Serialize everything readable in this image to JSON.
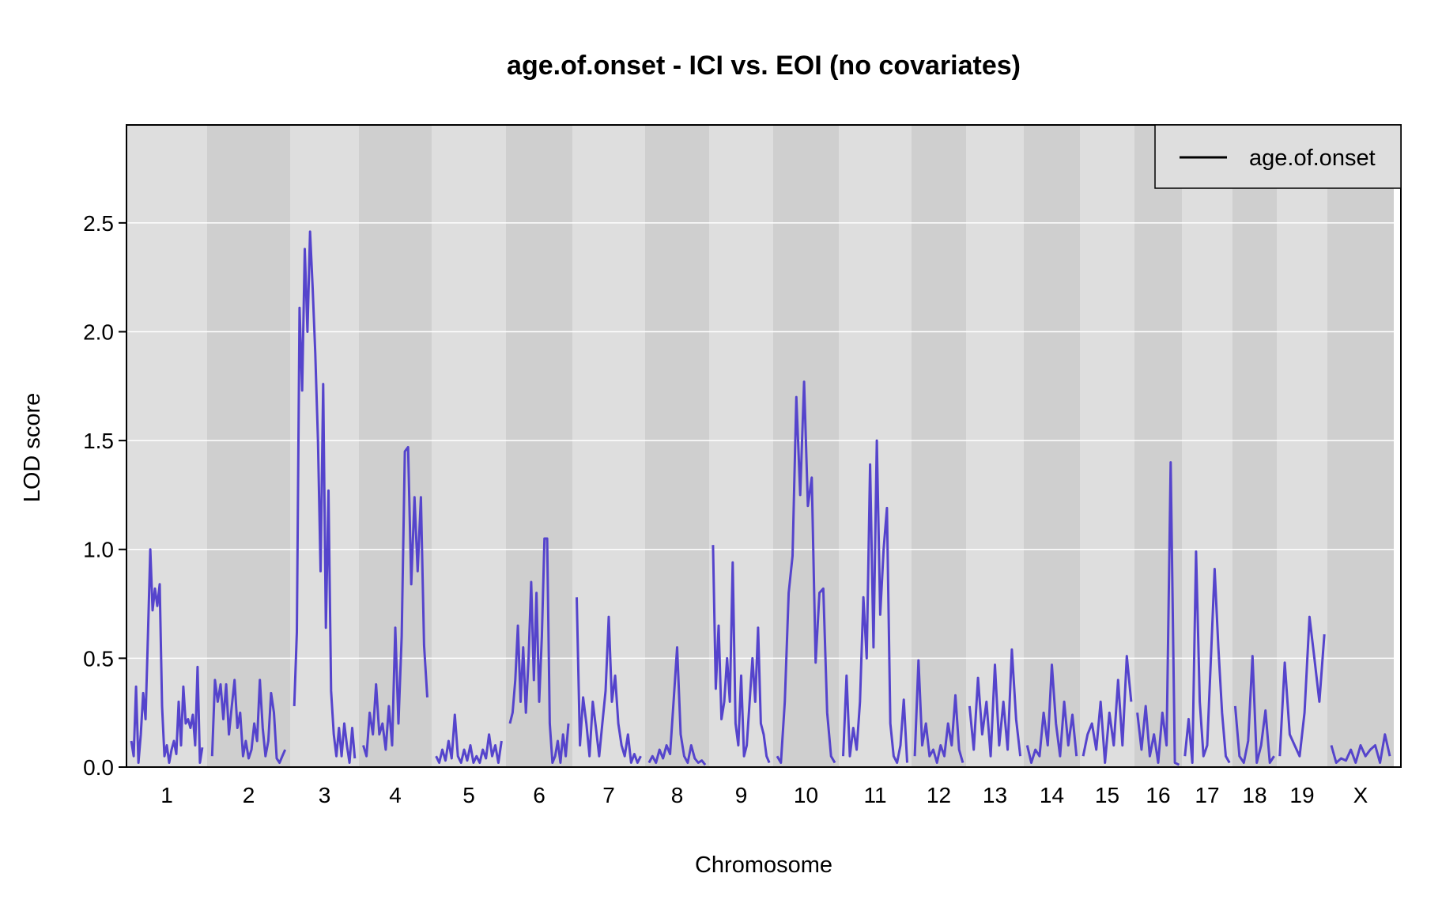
{
  "chart_data": {
    "type": "line",
    "title": "age.of.onset - ICI vs. EOI (no covariates)",
    "xlabel": "Chromosome",
    "ylabel": "LOD score",
    "ylim": [
      0,
      2.95
    ],
    "y_ticks": [
      "0.0",
      "0.5",
      "1.0",
      "1.5",
      "2.0",
      "2.5"
    ],
    "grid": "horizontal white gridlines, alternating grey chromosome bands",
    "legend_position": "top-right",
    "colors": {
      "line": "#5544cc",
      "band_light": "#dedede",
      "band_dark": "#cfcfcf",
      "grid": "#ffffff"
    },
    "chromosomes": [
      "1",
      "2",
      "3",
      "4",
      "5",
      "6",
      "7",
      "8",
      "9",
      "10",
      "11",
      "12",
      "13",
      "14",
      "15",
      "16",
      "17",
      "18",
      "19",
      "X"
    ],
    "series": [
      {
        "name": "age.of.onset",
        "peaks_by_chromosome": [
          {
            "chr": "1",
            "values": [
              0.12,
              0.05,
              0.37,
              0.02,
              0.15,
              0.34,
              0.22,
              0.6,
              1.0,
              0.72,
              0.82,
              0.74,
              0.84,
              0.28,
              0.05,
              0.1,
              0.02,
              0.08,
              0.12,
              0.06,
              0.3,
              0.1,
              0.37,
              0.2,
              0.22,
              0.18,
              0.24,
              0.1,
              0.46,
              0.02,
              0.09
            ]
          },
          {
            "chr": "2",
            "values": [
              0.05,
              0.4,
              0.3,
              0.38,
              0.22,
              0.38,
              0.15,
              0.28,
              0.4,
              0.18,
              0.25,
              0.05,
              0.12,
              0.04,
              0.08,
              0.2,
              0.12,
              0.4,
              0.18,
              0.05,
              0.12,
              0.34,
              0.25,
              0.04,
              0.02,
              0.05,
              0.08
            ]
          },
          {
            "chr": "3",
            "values": [
              0.28,
              0.62,
              2.11,
              1.73,
              2.38,
              2.0,
              2.46,
              2.2,
              1.9,
              1.5,
              0.9,
              1.76,
              0.64,
              1.27,
              0.35,
              0.15,
              0.05,
              0.18,
              0.05,
              0.2,
              0.1,
              0.02,
              0.18,
              0.04
            ]
          },
          {
            "chr": "4",
            "values": [
              0.1,
              0.05,
              0.25,
              0.15,
              0.38,
              0.15,
              0.2,
              0.08,
              0.28,
              0.1,
              0.64,
              0.2,
              0.6,
              1.45,
              1.47,
              0.84,
              1.24,
              0.9,
              1.24,
              0.56,
              0.32
            ]
          },
          {
            "chr": "5",
            "values": [
              0.05,
              0.02,
              0.08,
              0.03,
              0.12,
              0.04,
              0.24,
              0.05,
              0.02,
              0.08,
              0.03,
              0.1,
              0.02,
              0.05,
              0.02,
              0.08,
              0.04,
              0.15,
              0.05,
              0.1,
              0.02,
              0.12
            ]
          },
          {
            "chr": "6",
            "values": [
              0.2,
              0.25,
              0.4,
              0.65,
              0.3,
              0.55,
              0.25,
              0.5,
              0.85,
              0.4,
              0.8,
              0.3,
              0.6,
              1.05,
              1.05,
              0.2,
              0.02,
              0.05,
              0.12,
              0.02,
              0.15,
              0.05,
              0.2
            ]
          },
          {
            "chr": "7",
            "values": [
              0.78,
              0.1,
              0.32,
              0.2,
              0.05,
              0.3,
              0.18,
              0.05,
              0.2,
              0.35,
              0.69,
              0.3,
              0.42,
              0.2,
              0.1,
              0.05,
              0.15,
              0.02,
              0.06,
              0.02,
              0.05
            ]
          },
          {
            "chr": "8",
            "values": [
              0.02,
              0.05,
              0.02,
              0.08,
              0.04,
              0.1,
              0.06,
              0.3,
              0.55,
              0.15,
              0.05,
              0.02,
              0.1,
              0.04,
              0.02,
              0.03,
              0.01
            ]
          },
          {
            "chr": "9",
            "values": [
              1.02,
              0.36,
              0.65,
              0.22,
              0.3,
              0.5,
              0.3,
              0.94,
              0.2,
              0.1,
              0.42,
              0.05,
              0.1,
              0.3,
              0.5,
              0.3,
              0.64,
              0.2,
              0.15,
              0.05,
              0.02
            ]
          },
          {
            "chr": "10",
            "values": [
              0.05,
              0.02,
              0.3,
              0.8,
              0.97,
              1.7,
              1.25,
              1.77,
              1.2,
              1.33,
              0.48,
              0.8,
              0.82,
              0.25,
              0.05,
              0.02
            ]
          },
          {
            "chr": "11",
            "values": [
              0.05,
              0.42,
              0.05,
              0.18,
              0.08,
              0.3,
              0.78,
              0.5,
              1.39,
              0.55,
              1.5,
              0.7,
              1.0,
              1.19,
              0.2,
              0.05,
              0.02,
              0.1,
              0.31,
              0.02
            ]
          },
          {
            "chr": "12",
            "values": [
              0.05,
              0.49,
              0.1,
              0.2,
              0.05,
              0.08,
              0.02,
              0.1,
              0.05,
              0.2,
              0.1,
              0.33,
              0.08,
              0.02
            ]
          },
          {
            "chr": "13",
            "values": [
              0.28,
              0.08,
              0.41,
              0.15,
              0.3,
              0.05,
              0.47,
              0.1,
              0.3,
              0.08,
              0.54,
              0.22,
              0.05
            ]
          },
          {
            "chr": "14",
            "values": [
              0.1,
              0.02,
              0.08,
              0.05,
              0.25,
              0.1,
              0.47,
              0.2,
              0.05,
              0.3,
              0.1,
              0.24,
              0.05
            ]
          },
          {
            "chr": "15",
            "values": [
              0.05,
              0.15,
              0.2,
              0.08,
              0.3,
              0.02,
              0.25,
              0.1,
              0.4,
              0.1,
              0.51,
              0.3
            ]
          },
          {
            "chr": "16",
            "values": [
              0.25,
              0.08,
              0.28,
              0.05,
              0.15,
              0.02,
              0.25,
              0.1,
              1.4,
              0.02,
              0.01
            ]
          },
          {
            "chr": "17",
            "values": [
              0.05,
              0.22,
              0.02,
              0.99,
              0.3,
              0.05,
              0.1,
              0.5,
              0.91,
              0.55,
              0.25,
              0.05,
              0.02
            ]
          },
          {
            "chr": "18",
            "values": [
              0.28,
              0.05,
              0.02,
              0.12,
              0.51,
              0.02,
              0.1,
              0.26,
              0.02,
              0.05
            ]
          },
          {
            "chr": "19",
            "values": [
              0.05,
              0.48,
              0.15,
              0.1,
              0.05,
              0.25,
              0.69,
              0.5,
              0.3,
              0.61
            ]
          },
          {
            "chr": "X",
            "values": [
              0.1,
              0.02,
              0.04,
              0.03,
              0.08,
              0.02,
              0.1,
              0.05,
              0.08,
              0.1,
              0.02,
              0.15,
              0.05
            ]
          }
        ]
      }
    ]
  }
}
